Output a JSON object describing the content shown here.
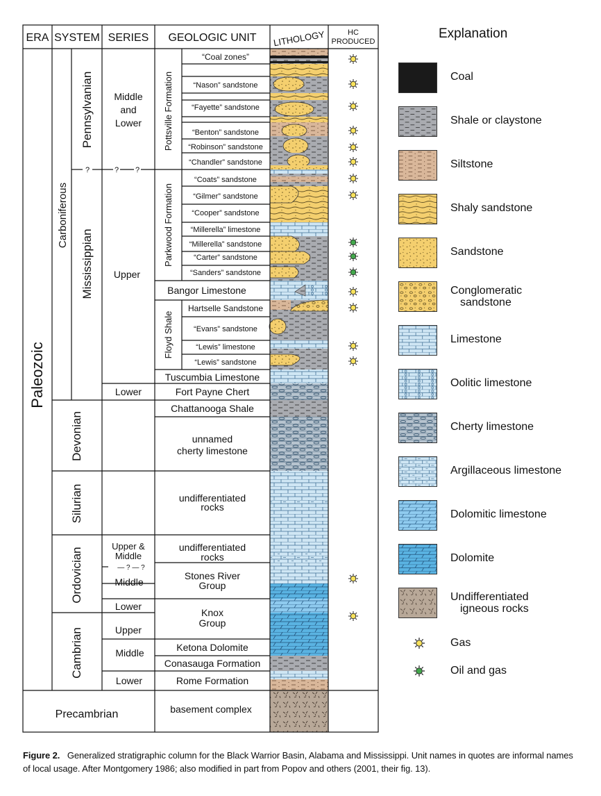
{
  "headers": {
    "era": "ERA",
    "system": "SYSTEM",
    "series": "SERIES",
    "unit": "GEOLOGIC UNIT",
    "litho": "LITHOLOGY",
    "hc1": "HC",
    "hc2": "PRODUCED"
  },
  "era": {
    "paleozoic": "Paleozoic",
    "precambrian": "Precambrian"
  },
  "systems": {
    "carboniferous": "Carboniferous",
    "pennsylvanian": "Pennsylvanian",
    "mississippian": "Mississippian",
    "devonian": "Devonian",
    "silurian": "Silurian",
    "ordovician": "Ordovician",
    "cambrian": "Cambrian"
  },
  "series": {
    "pa1": "Middle",
    "pa2": "and",
    "pa3": "Lower",
    "upper": "Upper",
    "lower": "Lower",
    "up_mid1": "Upper &",
    "up_mid2": "Middle",
    "middle": "Middle",
    "q": "?",
    "qline": "— ? — ?"
  },
  "formations": {
    "pottsville": "Pottsville Formation",
    "parkwood": "Parkwood Formation",
    "floyd": "Floyd Shale"
  },
  "units": {
    "coal_zones": "“Coal zones”",
    "nason": "“Nason” sandstone",
    "fayette": "“Fayette” sandstone",
    "benton": "“Benton” sandstone",
    "robinson": "“Robinson” sandstone",
    "chandler": "“Chandler” sandstone",
    "coats": "“Coats” sandstone",
    "gilmer": "“Gilmer” sandstone",
    "cooper": "“Cooper” sandstone",
    "millerella_ls": "“Millerella” limestone",
    "millerella_ss": "“Millerella” sandstone",
    "carter": "“Carter” sandstone",
    "sanders": "“Sanders” sandstone",
    "bangor": "Bangor Limestone",
    "hartselle": "Hartselle Sandstone",
    "evans": "“Evans” sandstone",
    "lewis_ls": "“Lewis” limestone",
    "lewis_ss": "“Lewis” sandstone",
    "tuscumbia": "Tuscumbia Limestone",
    "fort_payne": "Fort Payne Chert",
    "chattanooga": "Chattanooga Shale",
    "unnamed1": "unnamed",
    "unnamed2": "cherty limestone",
    "undiff1": "undifferentiated",
    "undiff2": "rocks",
    "stones1": "Stones River",
    "stones2": "Group",
    "knox1": "Knox",
    "knox2": "Group",
    "ketona": "Ketona Dolomite",
    "conasauga": "Conasauga Formation",
    "rome": "Rome Formation",
    "basement": "basement complex"
  },
  "legend": {
    "title": "Explanation",
    "items": [
      {
        "key": "coal",
        "label": "Coal"
      },
      {
        "key": "shale",
        "label": "Shale or claystone"
      },
      {
        "key": "siltstone",
        "label": "Siltstone"
      },
      {
        "key": "shaly_sandstone",
        "label": "Shaly sandstone"
      },
      {
        "key": "sandstone",
        "label": "Sandstone"
      },
      {
        "key": "conglomeratic",
        "label": "Conglomeratic",
        "label2": "sandstone"
      },
      {
        "key": "limestone",
        "label": "Limestone"
      },
      {
        "key": "oolitic",
        "label": "Oolitic limestone"
      },
      {
        "key": "cherty",
        "label": "Cherty limestone"
      },
      {
        "key": "argillaceous",
        "label": "Argillaceous limestone"
      },
      {
        "key": "dolomitic",
        "label": "Dolomitic limestone"
      },
      {
        "key": "dolomite",
        "label": "Dolomite"
      },
      {
        "key": "igneous",
        "label": "Undifferentiated",
        "label2": "igneous rocks"
      }
    ],
    "gas": "Gas",
    "oil_gas": "Oil and gas"
  },
  "colors": {
    "sand": "#f4cf6e",
    "shale": "#a9abb0",
    "silt": "#d9b79a",
    "limestone": "#cfe6f4",
    "dolomite": "#5ab3e2",
    "dolomitic": "#8fcbef",
    "igneous": "#b8a898",
    "gas": "#f8e25c",
    "oil": "#43a84c",
    "coal": "#1a1a1a"
  },
  "hc": {
    "gas": [
      85,
      121,
      153,
      188,
      212,
      233,
      257,
      281,
      420,
      443,
      498,
      520,
      833,
      887
    ],
    "oil": [
      349,
      369,
      392
    ]
  },
  "caption": {
    "label": "Figure 2.",
    "text": "Generalized stratigraphic column for the Black Warrior Basin, Alabama and Mississippi. Unit names in quotes are informal names of local usage. After Montgomery 1986; also modified in part from Popov and others (2001, their fig. 13)."
  }
}
